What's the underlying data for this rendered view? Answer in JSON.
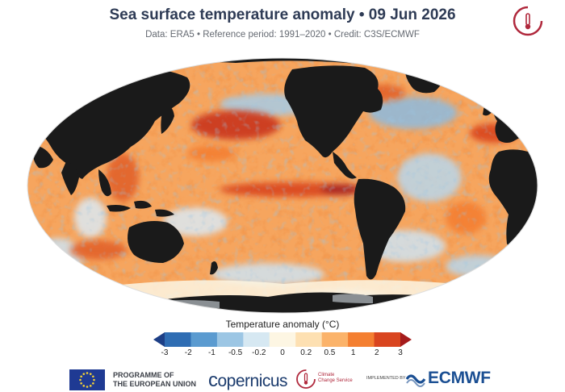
{
  "header": {
    "title": "Sea surface temperature anomaly • 09 Jun 2026",
    "subtitle": "Data: ERA5 • Reference period: 1991–2020 • Credit: C3S/ECMWF"
  },
  "map": {
    "projection": "robinson",
    "land_color": "#1a1a1a",
    "sea_ice_color": "#cfd3d6"
  },
  "colorbar": {
    "title": "Temperature anomaly (°C)",
    "ticks": [
      "-3",
      "-2",
      "-1",
      "-0.5",
      "-0.2",
      "0",
      "0.2",
      "0.5",
      "1",
      "2",
      "3"
    ],
    "colors": [
      "#1d3f86",
      "#2f6db3",
      "#5b9bd0",
      "#9cc6e4",
      "#d6e8f2",
      "#fdf6e3",
      "#fde0b2",
      "#fbb36a",
      "#f47f31",
      "#d9451f",
      "#a51c1c"
    ]
  },
  "footer": {
    "eu_line1": "PROGRAMME OF",
    "eu_line2": "THE EUROPEAN UNION",
    "copernicus": "opernicus",
    "c3s_line1": "Climate",
    "c3s_line2": "Change Service",
    "implemented_by": "IMPLEMENTED BY",
    "ecmwf": "ECMWF"
  }
}
